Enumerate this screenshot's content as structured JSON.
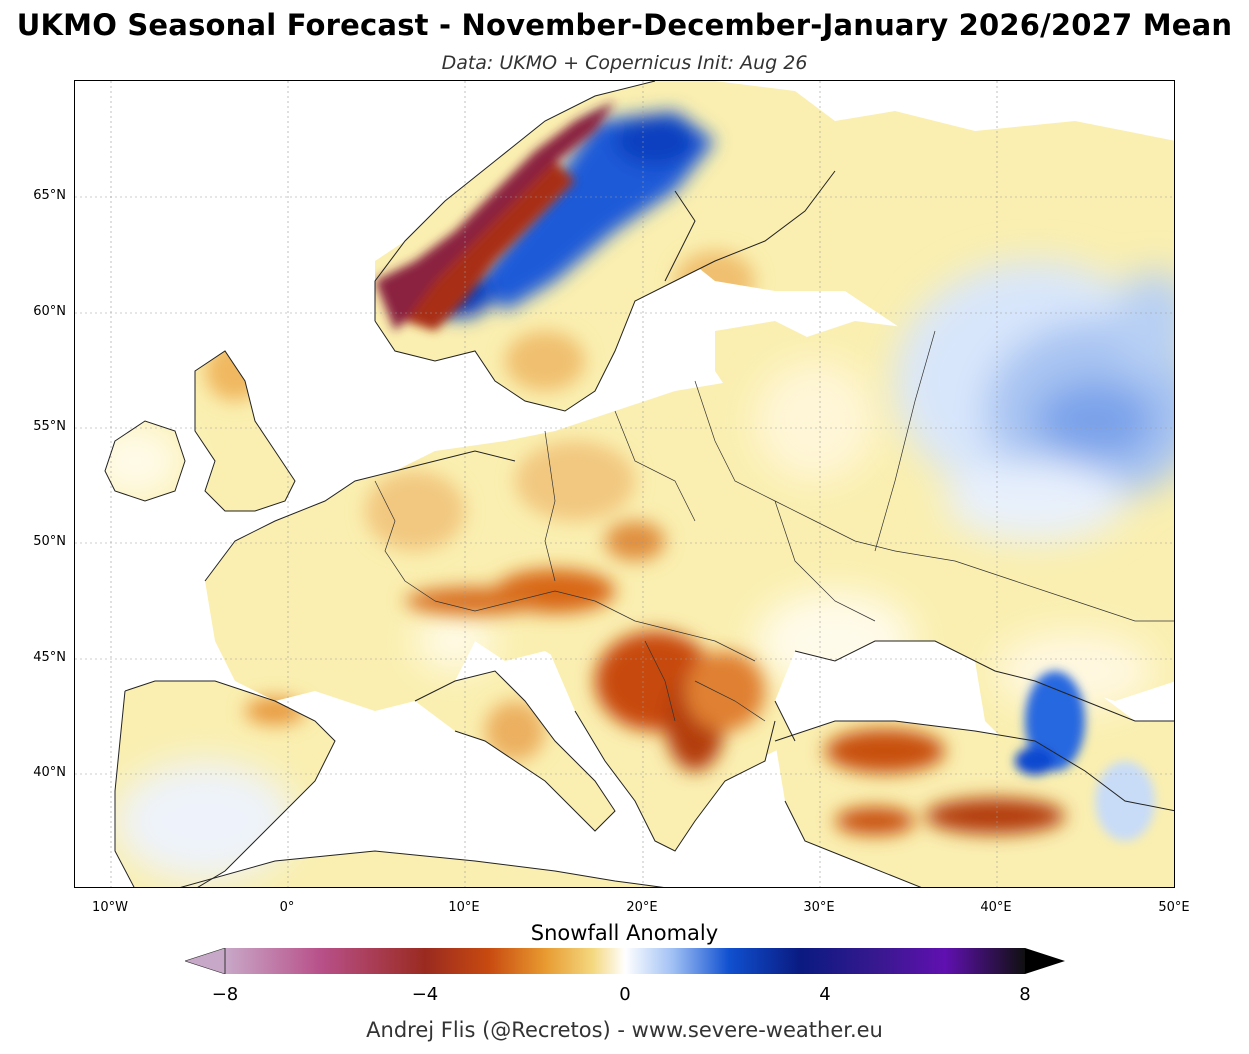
{
  "header": {
    "title": "UKMO Seasonal Forecast - November-December-January 2026/2027 Mean",
    "subtitle": "Data: UKMO + Copernicus   Init: Aug 26"
  },
  "map": {
    "variable": "Snowfall Anomaly",
    "latitude_labels": [
      "65°N",
      "60°N",
      "55°N",
      "50°N",
      "45°N",
      "40°N"
    ],
    "longitude_labels": [
      "10°W",
      "0°",
      "10°E",
      "20°E",
      "30°E",
      "40°E",
      "50°E"
    ],
    "extent": {
      "lon": [
        -12,
        50
      ],
      "lat": [
        35,
        70
      ]
    },
    "gridlines": true
  },
  "colorbar": {
    "label": "Snowfall Anomaly",
    "ticks": [
      "−8",
      "−4",
      "0",
      "4",
      "8"
    ],
    "range": [
      -8,
      8
    ],
    "extend": "both",
    "colors": [
      "#c8a8c8",
      "#b8508a",
      "#9a2a20",
      "#c84a10",
      "#e89a30",
      "#f4d880",
      "#ffffff",
      "#a0c0f4",
      "#1050d0",
      "#0a1a80",
      "#3a1890",
      "#6010b0",
      "#101010"
    ]
  },
  "credit": "Andrej Flis (@Recretos) - www.severe-weather.eu"
}
